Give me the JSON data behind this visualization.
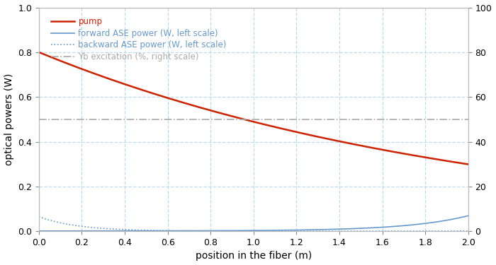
{
  "title": "",
  "xlabel": "position in the fiber (m)",
  "ylabel": "optical powers (W)",
  "xlim": [
    0,
    2.0
  ],
  "ylim_left": [
    0,
    1.0
  ],
  "ylim_right": [
    0,
    100
  ],
  "yticks_left": [
    0,
    0.2,
    0.4,
    0.6,
    0.8,
    1.0
  ],
  "yticks_right": [
    0,
    20,
    40,
    60,
    80,
    100
  ],
  "xticks": [
    0,
    0.2,
    0.4,
    0.6,
    0.8,
    1.0,
    1.2,
    1.4,
    1.6,
    1.8,
    2.0
  ],
  "pump_color": "#cc2200",
  "forward_ase_color": "#6699cc",
  "backward_ase_color": "#6699cc",
  "yb_color": "#aaaaaa",
  "legend_labels": [
    "pump",
    "forward ASE power (W, left scale)",
    "backward ASE power (W, left scale)",
    "Yb excitation (%, right scale)"
  ],
  "legend_text_colors": [
    "#cc2200",
    "#6699cc",
    "#6699cc",
    "#aaaaaa"
  ],
  "grid_color": "#bbddee",
  "background_color": "#ffffff",
  "figsize": [
    7.0,
    3.75
  ],
  "dpi": 100
}
